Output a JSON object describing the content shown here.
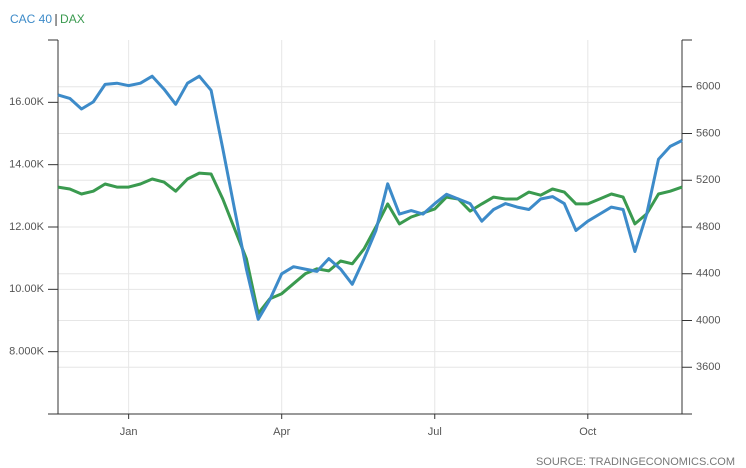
{
  "chart_data": {
    "type": "line",
    "categories": [
      null,
      null,
      null,
      null,
      null,
      null,
      "Jan",
      null,
      null,
      null,
      null,
      null,
      null,
      null,
      null,
      null,
      null,
      null,
      null,
      "Apr",
      null,
      null,
      null,
      null,
      null,
      null,
      null,
      null,
      null,
      null,
      null,
      null,
      "Jul",
      null,
      null,
      null,
      null,
      null,
      null,
      null,
      null,
      null,
      null,
      null,
      null,
      "Oct",
      null,
      null,
      null,
      null,
      null,
      null,
      null,
      null
    ],
    "series": [
      {
        "name": "CAC 40",
        "color": "#3d8bc9",
        "axis": "y2",
        "values": [
          5930,
          5900,
          5810,
          5870,
          6020,
          6030,
          6010,
          6030,
          6090,
          5980,
          5850,
          6030,
          6090,
          5970,
          5470,
          4950,
          4440,
          4010,
          4180,
          4400,
          4460,
          4440,
          4420,
          4530,
          4440,
          4310,
          4530,
          4770,
          5170,
          4910,
          4940,
          4910,
          5000,
          5080,
          5040,
          5000,
          4850,
          4950,
          5000,
          4970,
          4950,
          5040,
          5060,
          5000,
          4770,
          4850,
          4910,
          4970,
          4950,
          4590,
          4910,
          5380,
          5490,
          5540
        ]
      },
      {
        "name": "DAX",
        "color": "#3a9a4f",
        "values": [
          13280,
          13220,
          13060,
          13150,
          13380,
          13280,
          13280,
          13380,
          13540,
          13440,
          13150,
          13540,
          13730,
          13700,
          12900,
          11940,
          10980,
          9220,
          9700,
          9860,
          10180,
          10500,
          10660,
          10590,
          10910,
          10820,
          11300,
          12000,
          12740,
          12100,
          12320,
          12450,
          12580,
          12960,
          12900,
          12510,
          12740,
          12960,
          12900,
          12900,
          13120,
          13020,
          13220,
          13120,
          12740,
          12740,
          12900,
          13060,
          12960,
          12100,
          12420,
          13060,
          13150,
          13280
        ]
      }
    ],
    "ylim": [
      6000,
      18000
    ],
    "yticks": [
      {
        "value": 8000,
        "label": "8.000K"
      },
      {
        "value": 10000,
        "label": "10.00K"
      },
      {
        "value": 12000,
        "label": "12.00K"
      },
      {
        "value": 14000,
        "label": "14.00K"
      },
      {
        "value": 16000,
        "label": "16.00K"
      }
    ],
    "y2lim": [
      3200,
      6400
    ],
    "y2ticks": [
      3600,
      4000,
      4400,
      4800,
      5200,
      5600,
      6000
    ],
    "grid": true,
    "source": "SOURCE: TRADINGECONOMICS.COM"
  }
}
